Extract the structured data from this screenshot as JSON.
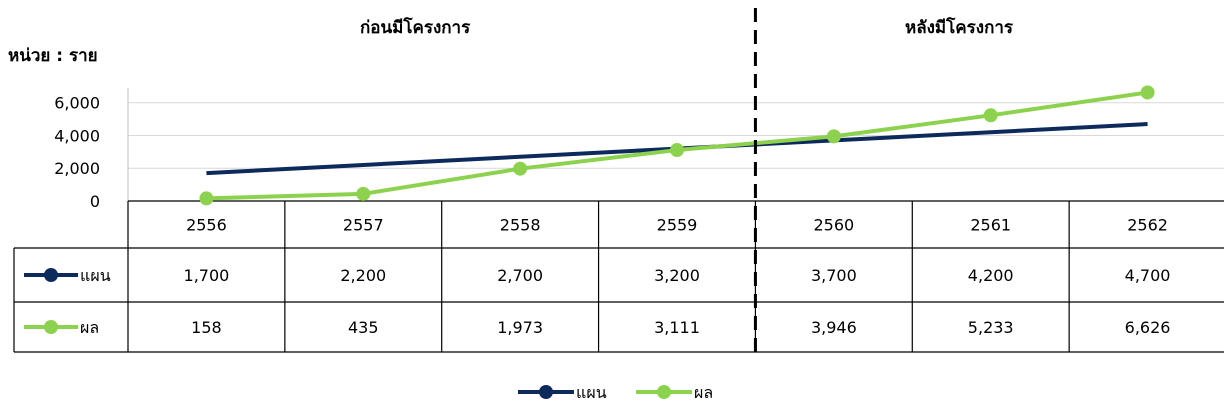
{
  "unit": "หน่วย : ราย",
  "periods": {
    "before": "ก่อนมีโครงการ",
    "after": "หลังมีโครงการ"
  },
  "colors": {
    "plan": "#0d2a5c",
    "result": "#8dd24e"
  },
  "chart_data": {
    "type": "line",
    "categories": [
      "2556",
      "2557",
      "2558",
      "2559",
      "2560",
      "2561",
      "2562"
    ],
    "series": [
      {
        "name": "แผน",
        "values": [
          1700,
          2200,
          2700,
          3200,
          3700,
          4200,
          4700
        ],
        "labels": [
          "1,700",
          "2,200",
          "2,700",
          "3,200",
          "3,700",
          "4,200",
          "4,700"
        ]
      },
      {
        "name": "ผล",
        "values": [
          158,
          435,
          1973,
          3111,
          3946,
          5233,
          6626
        ],
        "labels": [
          "158",
          "435",
          "1,973",
          "3,111",
          "3,946",
          "5,233",
          "6,626"
        ]
      }
    ],
    "yticks": [
      "0",
      "2,000",
      "4,000",
      "6,000"
    ],
    "ytick_values": [
      0,
      2000,
      4000,
      6000
    ],
    "ylim": [
      0,
      6900
    ],
    "grid": true,
    "legend": "bottom",
    "data_table": true,
    "divider_after": "2559"
  }
}
